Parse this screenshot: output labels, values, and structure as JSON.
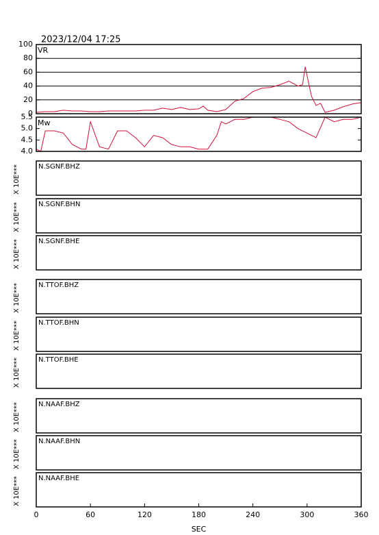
{
  "timestamp": "2023/12/04 17:25",
  "chart_data": [
    {
      "type": "line",
      "label": "VR",
      "xlim": [
        0,
        360
      ],
      "x": [
        0,
        10,
        20,
        30,
        40,
        50,
        60,
        70,
        80,
        90,
        100,
        110,
        120,
        130,
        140,
        150,
        160,
        170,
        180,
        185,
        190,
        200,
        210,
        220,
        230,
        240,
        250,
        260,
        270,
        280,
        290,
        295,
        298,
        300,
        305,
        310,
        315,
        320,
        330,
        340,
        350,
        360
      ],
      "series": [
        {
          "color": "#d0103a",
          "values": [
            2,
            3,
            3,
            5,
            4,
            4,
            3,
            3,
            4,
            4,
            4,
            4,
            5,
            5,
            8,
            6,
            9,
            6,
            7,
            11,
            5,
            3,
            6,
            18,
            22,
            32,
            37,
            38,
            42,
            47,
            40,
            42,
            68,
            55,
            25,
            12,
            15,
            2,
            5,
            10,
            14,
            16
          ]
        }
      ],
      "ylim": [
        0,
        100
      ],
      "yticks": [
        0,
        20,
        40,
        60,
        80,
        100
      ],
      "grid": true
    },
    {
      "type": "line",
      "label": "Mw",
      "xlim": [
        0,
        360
      ],
      "x": [
        0,
        5,
        10,
        20,
        30,
        40,
        50,
        55,
        60,
        70,
        80,
        90,
        100,
        110,
        120,
        130,
        140,
        150,
        160,
        170,
        180,
        190,
        200,
        205,
        210,
        220,
        230,
        240,
        250,
        260,
        270,
        280,
        290,
        300,
        310,
        320,
        330,
        340,
        350,
        360
      ],
      "series": [
        {
          "color": "#d0103a",
          "values": [
            4.1,
            4.0,
            4.9,
            4.9,
            4.8,
            4.3,
            4.1,
            4.1,
            5.3,
            4.2,
            4.1,
            4.9,
            4.9,
            4.6,
            4.2,
            4.7,
            4.6,
            4.3,
            4.2,
            4.2,
            4.1,
            4.1,
            4.7,
            5.3,
            5.2,
            5.4,
            5.4,
            5.5,
            5.5,
            5.5,
            5.4,
            5.3,
            5.0,
            4.8,
            4.6,
            5.5,
            5.3,
            5.4,
            5.4,
            5.5
          ]
        }
      ],
      "ylim": [
        4.0,
        5.5
      ],
      "yticks": [
        {
          "value": 4.0,
          "label": "4.0"
        },
        4.5,
        {
          "value": 5.0,
          "label": "5.0"
        },
        5.5
      ],
      "grid": false
    },
    {
      "type": "waveform",
      "ylabel": "X 10E***",
      "xlabel": "SEC",
      "xlim": [
        0,
        360
      ],
      "xticks": [
        0,
        60,
        120,
        180,
        240,
        300,
        360
      ],
      "channels": [
        "N.SGNF.BHZ",
        "N.SGNF.BHN",
        "N.SGNF.BHE",
        "N.TTOF.BHZ",
        "N.TTOF.BHN",
        "N.TTOF.BHE",
        "N.NAAF.BHZ",
        "N.NAAF.BHN",
        "N.NAAF.BHE"
      ]
    }
  ]
}
